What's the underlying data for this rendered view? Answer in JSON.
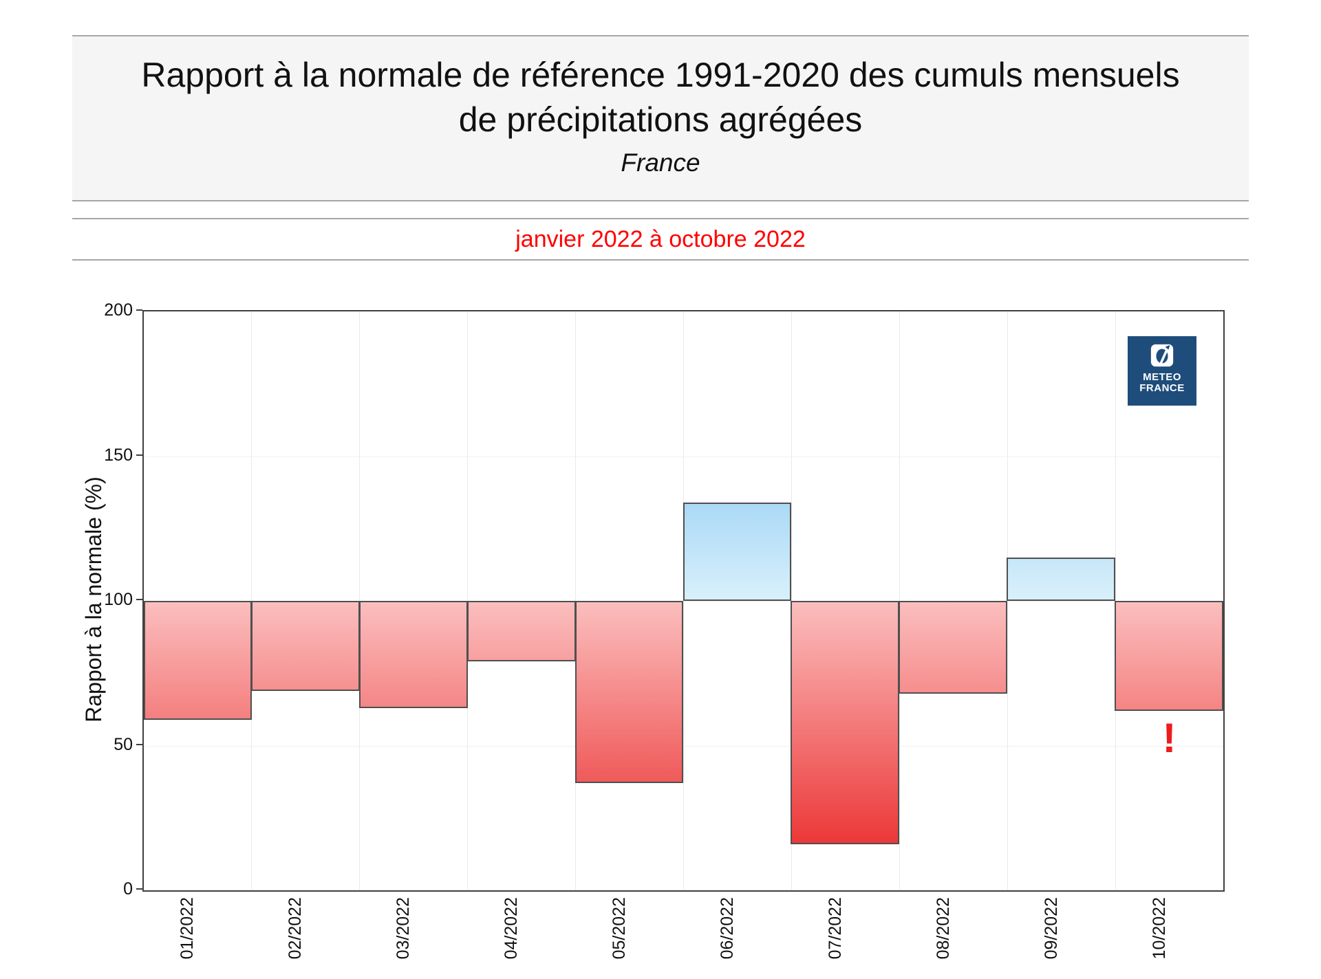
{
  "title": {
    "line1": "Rapport à la normale de référence 1991-2020 des cumuls mensuels",
    "line2": "de précipitations agrégées",
    "region": "France"
  },
  "subtitle": "janvier 2022 à octobre 2022",
  "logo": {
    "line1": "METEO",
    "line2": "FRANCE",
    "background": "#1e4d7b"
  },
  "chart_data": {
    "type": "bar",
    "title": "Rapport à la normale de référence 1991-2020 des cumuls mensuels de précipitations agrégées",
    "region": "France",
    "period": "janvier 2022 à octobre 2022",
    "categories": [
      "01/2022",
      "02/2022",
      "03/2022",
      "04/2022",
      "05/2022",
      "06/2022",
      "07/2022",
      "08/2022",
      "09/2022",
      "10/2022"
    ],
    "values": [
      59,
      69,
      63,
      79,
      37,
      134,
      16,
      68,
      115,
      62
    ],
    "baseline": 100,
    "ylabel": "Rapport à la normale (%)",
    "ylim": [
      0,
      200
    ],
    "yticks": [
      0,
      50,
      100,
      150,
      200
    ],
    "grid": true,
    "legend": false,
    "colors": {
      "deficit_light": "#fcc3c3",
      "deficit_strong": "#e91d1d",
      "surplus_light": "#def2fc",
      "surplus_strong": "#47a7e9",
      "bar_border": "#4f4f4f",
      "annotation_red": "#ee1b1b"
    },
    "annotation": {
      "text": "!",
      "category": "10/2022"
    }
  }
}
